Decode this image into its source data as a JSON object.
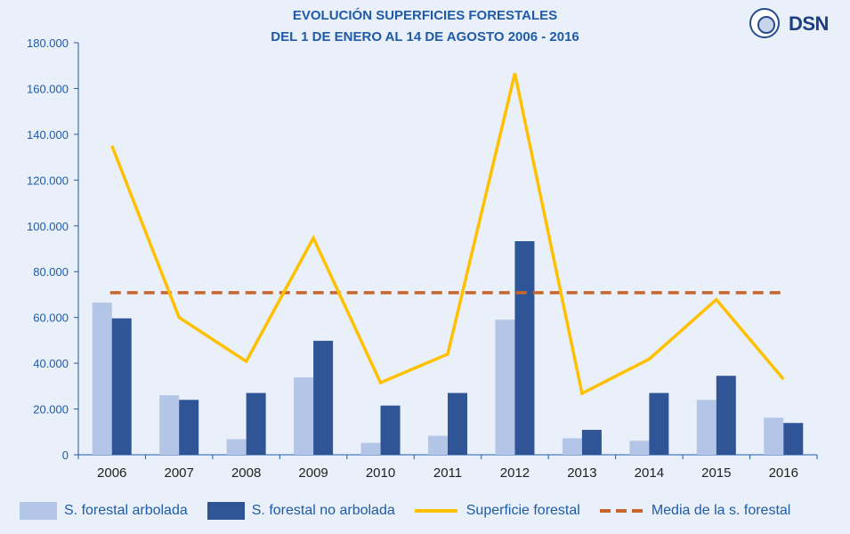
{
  "title_line1": "EVOLUCIÓN SUPERFICIES FORESTALES",
  "title_line2": "DEL 1 DE ENERO AL 14 DE AGOSTO 2006 - 2016",
  "logo_text": "DSN",
  "colors": {
    "arbolada": "#b4c6e7",
    "no_arbolada": "#2f5597",
    "superficie": "#ffc000",
    "media": "#c8652c",
    "axis_text": "#1f5ba8",
    "background": "#e9f0f9"
  },
  "chart_data": {
    "type": "bar",
    "categories": [
      "2006",
      "2007",
      "2008",
      "2009",
      "2010",
      "2011",
      "2012",
      "2013",
      "2014",
      "2015",
      "2016"
    ],
    "series": [
      {
        "name": "S. forestal arbolada",
        "type": "bar",
        "values": [
          66500,
          26000,
          6800,
          33800,
          5200,
          8300,
          59000,
          7200,
          6100,
          24000,
          16200
        ]
      },
      {
        "name": "S. forestal no arbolada",
        "type": "bar",
        "values": [
          59600,
          24000,
          27000,
          49800,
          21500,
          27000,
          93300,
          10900,
          27000,
          34500,
          13900
        ]
      },
      {
        "name": "Superficie forestal",
        "type": "line",
        "values": [
          135000,
          60000,
          40800,
          94700,
          31500,
          44000,
          166600,
          26800,
          41800,
          67800,
          33000
        ]
      },
      {
        "name": "Media de la s. forestal",
        "type": "line-dashed",
        "values": [
          70800,
          70800,
          70800,
          70800,
          70800,
          70800,
          70800,
          70800,
          70800,
          70800,
          70800
        ]
      }
    ],
    "ylim": [
      0,
      180000
    ],
    "yticks": [
      0,
      20000,
      40000,
      60000,
      80000,
      100000,
      120000,
      140000,
      160000,
      180000
    ],
    "ytick_labels": [
      "0",
      "20.000",
      "40.000",
      "60.000",
      "80.000",
      "100.000",
      "120.000",
      "140.000",
      "160.000",
      "180.000"
    ],
    "grid": false,
    "legend_position": "bottom"
  }
}
